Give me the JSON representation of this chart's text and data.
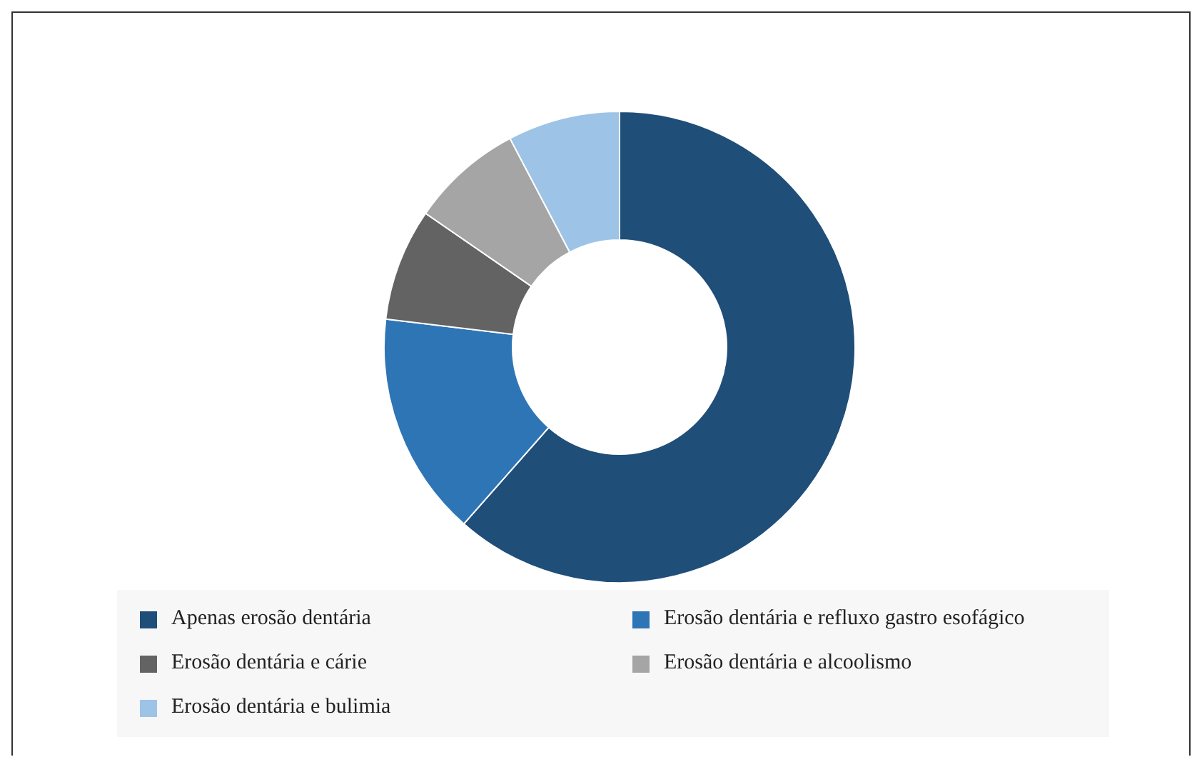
{
  "chart_data": {
    "type": "donut",
    "categories": [
      "Apenas erosão dentária",
      "Erosão dentária e refluxo gastro esofágico",
      "Erosão dentária e cárie",
      "Erosão dentária e alcoolismo",
      "Erosão dentária e bulimia"
    ],
    "values": [
      61.5,
      15.4,
      7.7,
      7.7,
      7.7
    ],
    "colors": [
      "#1f4e79",
      "#2e75b6",
      "#636363",
      "#a5a5a5",
      "#9dc3e6"
    ],
    "legend": "bottom"
  }
}
